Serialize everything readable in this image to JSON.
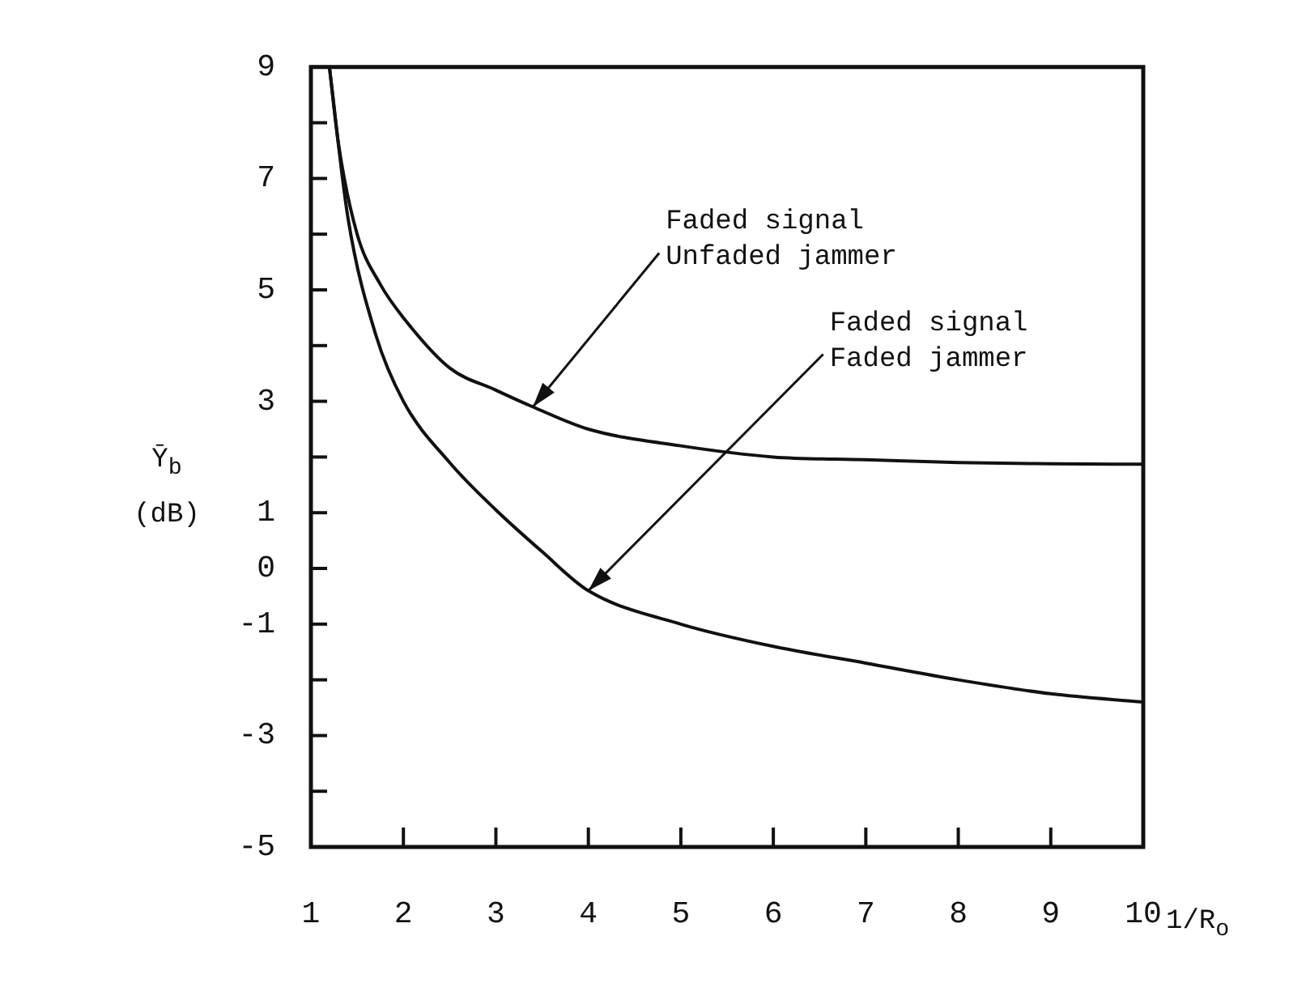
{
  "chart_data": {
    "type": "line",
    "xlabel": "1/R$_{o}$",
    "ylabel": "Ȳ$_{b}$ (dB)",
    "series": [
      {
        "color": "#111111",
        "x": [
          1.2,
          1.3,
          1.5,
          1.75,
          2,
          2.5,
          3,
          3.4,
          4,
          5,
          6,
          7,
          8,
          9,
          10
        ],
        "values": [
          9,
          7.6,
          6.0,
          5.1,
          4.5,
          3.6,
          3.2,
          2.9,
          2.5,
          2.2,
          2.0,
          1.95,
          1.9,
          1.88,
          1.87
        ]
      },
      {
        "color": "#111111",
        "x": [
          1.2,
          1.4,
          1.7,
          2,
          2.5,
          3,
          3.5,
          4,
          5,
          6,
          7,
          8,
          9,
          10
        ],
        "values": [
          9,
          6.3,
          4.2,
          3.0,
          1.9,
          1.05,
          0.3,
          -0.4,
          -1.0,
          -1.4,
          -1.7,
          -2.0,
          -2.25,
          -2.4
        ]
      }
    ],
    "annotations": [
      {
        "text": "Faded signal\nUnfaded jammer",
        "x": 3.4,
        "y": 2.9
      },
      {
        "text": "Faded signal\nFaded jammer",
        "x": 4,
        "y": -0.4
      }
    ],
    "xlim": [
      1,
      10
    ],
    "xticks": [
      1,
      2,
      3,
      4,
      5,
      6,
      7,
      8,
      9,
      10
    ],
    "ylim": [
      -5,
      9
    ],
    "yticks": [
      -5,
      {
        "value": -4,
        "label": null
      },
      -3,
      {
        "value": -2,
        "label": null
      },
      -1,
      0,
      1,
      {
        "value": 2,
        "label": null
      },
      3,
      {
        "value": 4,
        "label": null
      },
      5,
      {
        "value": 6,
        "label": null
      },
      7,
      {
        "value": 8,
        "label": null
      },
      9
    ],
    "grid": false,
    "legend": false,
    "marker": "none",
    "line_style": "solid"
  }
}
